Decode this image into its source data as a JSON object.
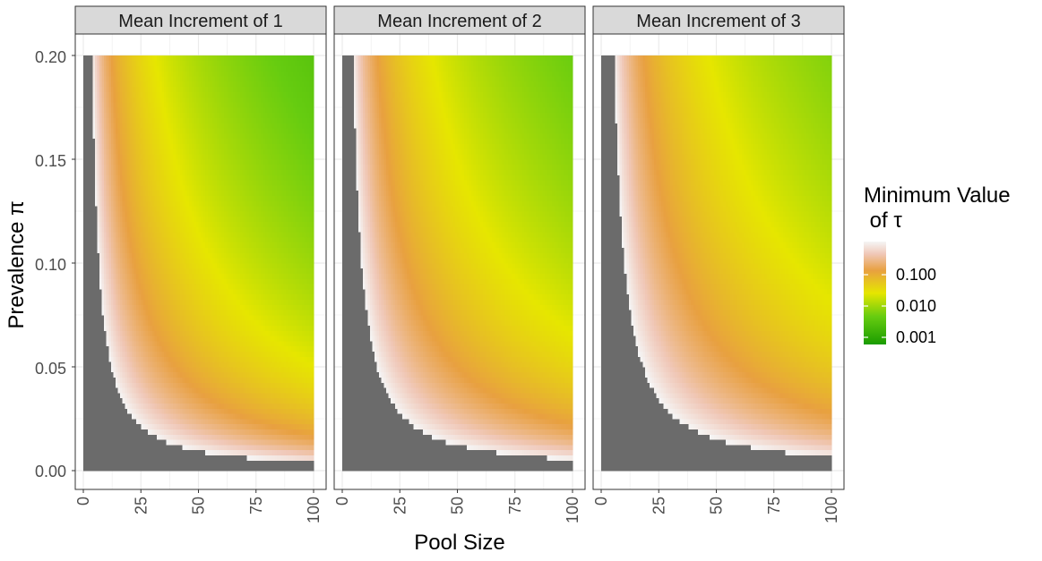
{
  "chart_data": {
    "type": "heatmap",
    "xlabel": "Pool Size",
    "ylabel": "Prevalence π",
    "xlim": [
      0,
      100
    ],
    "ylim": [
      0,
      0.2
    ],
    "x_ticks": [
      "0",
      "25",
      "50",
      "75",
      "100"
    ],
    "y_ticks": [
      "0.00",
      "0.05",
      "0.10",
      "0.15",
      "0.20"
    ],
    "grid": true,
    "panels": [
      {
        "title": "Mean Increment of 1",
        "shift": 1.0
      },
      {
        "title": "Mean Increment of 2",
        "shift": 1.25
      },
      {
        "title": "Mean Increment of 3",
        "shift": 1.5
      }
    ],
    "legend": {
      "title_line1": "Minimum Value",
      "title_line2": " of τ",
      "labels": [
        "0.100",
        "0.010",
        "0.001"
      ],
      "scale": "log10",
      "placement": "right"
    },
    "colors": {
      "low": "#1a9c00",
      "mid_low": "#66cc10",
      "mid": "#e6e600",
      "mid_high": "#e8a040",
      "high": "#f0d0d0",
      "top": "#f5f5f5",
      "na": "#6b6b6b"
    }
  }
}
